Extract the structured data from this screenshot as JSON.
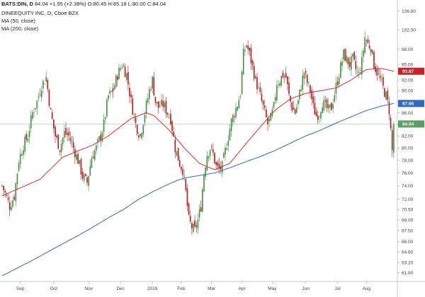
{
  "header": {
    "symbol": "BATS:DIN, D",
    "last": "84.04",
    "change": "+1.95 (+2.38%)",
    "ohlc": "O:80.45 H:85.18 L:80.00 C:84.04",
    "company": "DINEEQUITY INC, D, Cboe BZX",
    "ma50_label": "MA (50, close)",
    "ma200_label": "MA (200, close)"
  },
  "colors": {
    "up": "#3e8f3a",
    "down": "#b5171a",
    "ma50": "#d62e2e",
    "ma200": "#2f68c8",
    "price_tag": "#5a9e63",
    "price_line": "#a8d5ad"
  },
  "chart_data": {
    "type": "candlestick",
    "x_tick_labels": [
      "Sep",
      "Oct",
      "Nov",
      "Dec",
      "2019",
      "Feb",
      "Mar",
      "Apr",
      "May",
      "Jun",
      "Jul",
      "Aug"
    ],
    "y_tick_labels": [
      "61.90",
      "63.20",
      "64.60",
      "66.00",
      "67.50",
      "69.00",
      "70.50",
      "72.00",
      "74.00",
      "76.00",
      "78.00",
      "80.00",
      "82.00",
      "84.00",
      "86.00",
      "88.00",
      "90.00",
      "92.00",
      "95.00",
      "98.00",
      "102.00",
      "106.00"
    ],
    "scale": "log",
    "ylim": [
      60.8,
      107.5
    ],
    "last_price": 84.04,
    "ma50_last": 93.67,
    "ma200_last": 87.66,
    "price_path": [
      [
        0,
        74.0
      ],
      [
        3,
        72.3
      ],
      [
        5,
        71.0
      ],
      [
        8,
        72.5
      ],
      [
        11,
        78.0
      ],
      [
        14,
        80.5
      ],
      [
        17,
        82.0
      ],
      [
        20,
        86.0
      ],
      [
        23,
        88.0
      ],
      [
        26,
        91.0
      ],
      [
        29,
        92.5
      ],
      [
        32,
        86.0
      ],
      [
        35,
        82.0
      ],
      [
        38,
        80.0
      ],
      [
        41,
        82.5
      ],
      [
        44,
        82.0
      ],
      [
        47,
        80.0
      ],
      [
        50,
        78.0
      ],
      [
        53,
        75.5
      ],
      [
        56,
        74.5
      ],
      [
        59,
        78.5
      ],
      [
        62,
        80.0
      ],
      [
        65,
        82.0
      ],
      [
        67,
        84.0
      ],
      [
        70,
        89.0
      ],
      [
        73,
        90.0
      ],
      [
        76,
        93.0
      ],
      [
        79,
        95.0
      ],
      [
        82,
        93.0
      ],
      [
        85,
        88.0
      ],
      [
        88,
        84.0
      ],
      [
        91,
        82.0
      ],
      [
        94,
        86.0
      ],
      [
        97,
        90.0
      ],
      [
        99,
        92.0
      ],
      [
        101,
        88.0
      ],
      [
        103,
        87.0
      ],
      [
        106,
        87.5
      ],
      [
        109,
        86.0
      ],
      [
        111,
        85.0
      ],
      [
        114,
        80.0
      ],
      [
        117,
        77.5
      ],
      [
        119,
        76.5
      ],
      [
        121,
        73.0
      ],
      [
        123,
        69.0
      ],
      [
        125,
        68.0
      ],
      [
        127,
        67.5
      ],
      [
        129,
        69.0
      ],
      [
        131,
        71.0
      ],
      [
        133,
        76.0
      ],
      [
        135,
        79.0
      ],
      [
        137,
        80.0
      ],
      [
        139,
        79.0
      ],
      [
        141,
        77.0
      ],
      [
        143,
        76.5
      ],
      [
        145,
        77.0
      ],
      [
        147,
        79.5
      ],
      [
        149,
        82.0
      ],
      [
        151,
        84.5
      ],
      [
        153,
        86.0
      ],
      [
        155,
        87.5
      ],
      [
        157,
        89.5
      ],
      [
        159,
        97.0
      ],
      [
        161,
        99.0
      ],
      [
        163,
        97.0
      ],
      [
        165,
        94.5
      ],
      [
        167,
        92.0
      ],
      [
        169,
        90.0
      ],
      [
        171,
        88.0
      ],
      [
        173,
        86.0
      ],
      [
        175,
        84.0
      ],
      [
        177,
        85.0
      ],
      [
        179,
        87.0
      ],
      [
        181,
        91.5
      ],
      [
        183,
        92.0
      ],
      [
        185,
        93.0
      ],
      [
        187,
        92.5
      ],
      [
        189,
        89.0
      ],
      [
        191,
        87.0
      ],
      [
        193,
        86.0
      ],
      [
        195,
        88.0
      ],
      [
        197,
        91.0
      ],
      [
        199,
        93.5
      ],
      [
        201,
        91.5
      ],
      [
        203,
        90.0
      ],
      [
        205,
        87.0
      ],
      [
        207,
        85.5
      ],
      [
        209,
        86.0
      ],
      [
        211,
        88.0
      ],
      [
        213,
        87.0
      ],
      [
        215,
        86.5
      ],
      [
        217,
        87.0
      ],
      [
        219,
        89.5
      ],
      [
        221,
        92.0
      ],
      [
        223,
        94.5
      ],
      [
        225,
        97.0
      ],
      [
        227,
        96.0
      ],
      [
        229,
        95.0
      ],
      [
        231,
        96.0
      ],
      [
        233,
        94.0
      ],
      [
        235,
        93.0
      ],
      [
        237,
        95.5
      ],
      [
        239,
        100.5
      ],
      [
        241,
        99.0
      ],
      [
        243,
        98.5
      ],
      [
        245,
        95.0
      ],
      [
        247,
        93.5
      ],
      [
        249,
        92.0
      ],
      [
        251,
        90.5
      ],
      [
        253,
        89.0
      ],
      [
        255,
        86.5
      ],
      [
        257,
        79.5
      ],
      [
        258,
        84.04
      ]
    ],
    "ma50_path": [
      [
        0,
        72.5
      ],
      [
        10,
        73.5
      ],
      [
        25,
        75.0
      ],
      [
        40,
        78.5
      ],
      [
        50,
        79.5
      ],
      [
        60,
        80.5
      ],
      [
        70,
        82.0
      ],
      [
        85,
        85.0
      ],
      [
        95,
        86.0
      ],
      [
        100,
        85.5
      ],
      [
        110,
        83.0
      ],
      [
        120,
        80.0
      ],
      [
        130,
        77.5
      ],
      [
        140,
        76.5
      ],
      [
        150,
        77.5
      ],
      [
        160,
        80.5
      ],
      [
        170,
        83.5
      ],
      [
        180,
        86.5
      ],
      [
        190,
        88.5
      ],
      [
        200,
        89.5
      ],
      [
        210,
        90.0
      ],
      [
        220,
        90.5
      ],
      [
        230,
        92.0
      ],
      [
        240,
        94.0
      ],
      [
        250,
        94.2
      ],
      [
        258,
        93.67
      ]
    ],
    "ma200_path": [
      [
        0,
        61.5
      ],
      [
        10,
        62.5
      ],
      [
        20,
        63.5
      ],
      [
        30,
        64.6
      ],
      [
        40,
        65.7
      ],
      [
        50,
        66.8
      ],
      [
        60,
        68.0
      ],
      [
        70,
        69.3
      ],
      [
        80,
        70.5
      ],
      [
        90,
        72.0
      ],
      [
        100,
        73.2
      ],
      [
        110,
        74.3
      ],
      [
        115,
        74.8
      ],
      [
        120,
        75.2
      ],
      [
        130,
        75.6
      ],
      [
        140,
        76.0
      ],
      [
        150,
        76.8
      ],
      [
        160,
        77.7
      ],
      [
        170,
        78.6
      ],
      [
        180,
        79.6
      ],
      [
        190,
        80.8
      ],
      [
        200,
        82.0
      ],
      [
        210,
        83.0
      ],
      [
        220,
        84.2
      ],
      [
        230,
        85.3
      ],
      [
        240,
        86.4
      ],
      [
        250,
        87.2
      ],
      [
        258,
        87.66
      ]
    ]
  }
}
